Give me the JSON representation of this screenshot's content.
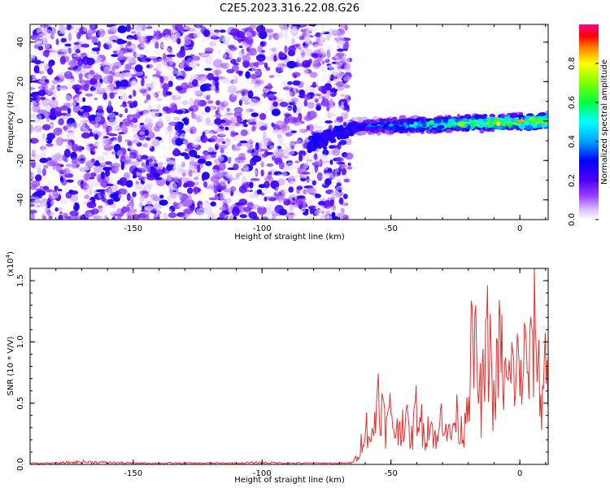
{
  "figure_title": "C2E5.2023.316.22.08.G26",
  "chart_data": [
    {
      "type": "heatmap",
      "title": "C2E5.2023.316.22.08.G26",
      "xlabel": "Height of straight line (km)",
      "ylabel": "Frequency (Hz)",
      "xlim": [
        -190,
        11
      ],
      "ylim": [
        -50,
        49
      ],
      "x_ticks": [
        -150,
        -100,
        -50,
        0
      ],
      "y_ticks": [
        -40,
        -20,
        0,
        20,
        40
      ],
      "colorbar": {
        "label": "Normalized spectral amplitude",
        "range": [
          0,
          1
        ],
        "ticks": [
          0.0,
          0.2,
          0.4,
          0.6,
          0.8
        ],
        "colormap": [
          "#ffffff",
          "#d9c2ff",
          "#7d00ff",
          "#0000ff",
          "#00a0ff",
          "#00ffff",
          "#00ff00",
          "#ffff00",
          "#ff0000",
          "#ff0090"
        ]
      },
      "features": [
        {
          "region": "noise",
          "x_range": [
            -190,
            -66
          ],
          "y_range": [
            -50,
            49
          ],
          "amplitude": "low (0.0-0.3)"
        },
        {
          "region": "signal-band",
          "x_range": [
            -66,
            11
          ],
          "center_frequency_hz": [
            -3,
            0
          ],
          "width_hz": 8,
          "amplitude": "0.4-1.0, strongest near x = -5 to 10"
        }
      ]
    },
    {
      "type": "line",
      "title": "",
      "xlabel": "Height of straight line (km)",
      "ylabel": "SNR (10 * V/V)",
      "y_scale_label": "(x10",
      "y_scale_exp": "4",
      "xlim": [
        -190,
        11
      ],
      "ylim": [
        0,
        1.6
      ],
      "x_ticks": [
        -150,
        -100,
        -50,
        0
      ],
      "y_ticks": [
        0.0,
        0.5,
        1.0,
        1.5
      ],
      "series": [
        {
          "color": "#e83030",
          "x": [
            -190,
            -180,
            -170,
            -160,
            -150,
            -140,
            -130,
            -120,
            -110,
            -100,
            -90,
            -80,
            -70,
            -66,
            -63,
            -60,
            -57,
            -55,
            -52,
            -50,
            -48,
            -45,
            -42,
            -40,
            -37,
            -35,
            -32,
            -30,
            -27,
            -25,
            -22,
            -20,
            -18,
            -15,
            -12,
            -10,
            -8,
            -5,
            -2,
            0,
            2,
            4,
            6,
            8,
            10,
            11
          ],
          "y": [
            0.01,
            0.01,
            0.02,
            0.015,
            0.01,
            0.01,
            0.01,
            0.01,
            0.01,
            0.015,
            0.01,
            0.01,
            0.01,
            0.01,
            0.05,
            0.4,
            0.25,
            0.8,
            0.35,
            0.55,
            0.3,
            0.5,
            0.25,
            0.6,
            0.3,
            0.45,
            0.2,
            0.6,
            0.25,
            0.5,
            0.3,
            0.85,
            1.25,
            0.6,
            1.35,
            0.55,
            1.2,
            0.75,
            1.0,
            0.9,
            1.05,
            0.95,
            1.58,
            0.6,
            1.1,
            0.7
          ]
        }
      ]
    }
  ]
}
